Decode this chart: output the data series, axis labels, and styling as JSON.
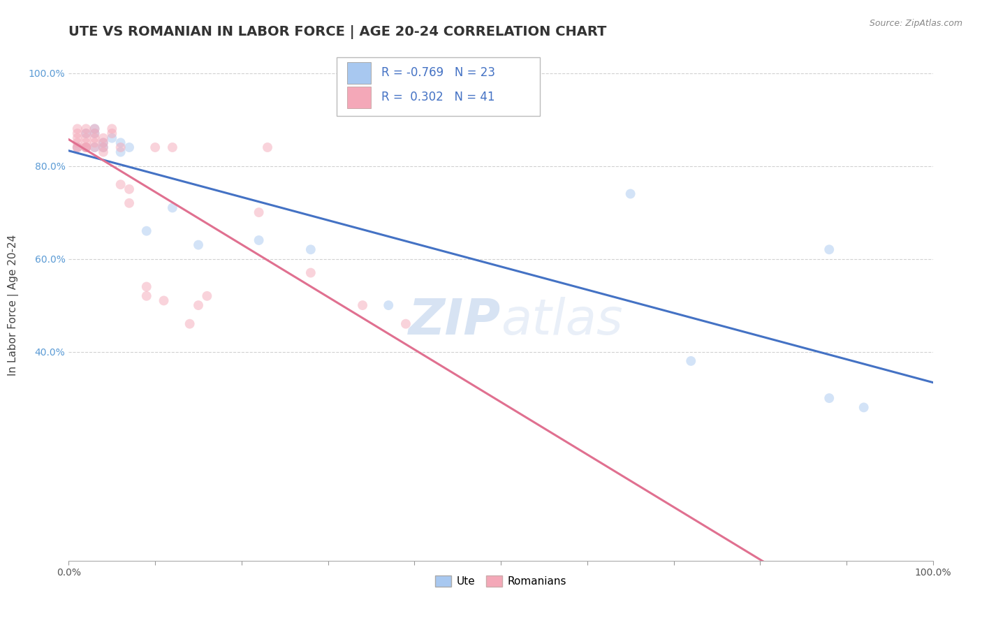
{
  "title": "UTE VS ROMANIAN IN LABOR FORCE | AGE 20-24 CORRELATION CHART",
  "source_text": "Source: ZipAtlas.com",
  "xlabel": "",
  "ylabel": "In Labor Force | Age 20-24",
  "watermark": "ZIPatlas",
  "ute_R": -0.769,
  "ute_N": 23,
  "romanian_R": 0.302,
  "romanian_N": 41,
  "ute_color": "#A8C8F0",
  "romanian_color": "#F4A8B8",
  "ute_line_color": "#4472C4",
  "romanian_line_color": "#E07090",
  "background_color": "#FFFFFF",
  "grid_color": "#CCCCCC",
  "xlim": [
    0.0,
    1.0
  ],
  "ylim": [
    -0.05,
    1.05
  ],
  "x_ticks": [
    0.0,
    0.1,
    0.2,
    0.3,
    0.4,
    0.5,
    0.6,
    0.7,
    0.8,
    0.9,
    1.0
  ],
  "x_tick_labels_show": [
    0.0,
    1.0
  ],
  "y_ticks": [
    0.4,
    0.6,
    0.8,
    1.0
  ],
  "y_tick_labels": [
    "40.0%",
    "60.0%",
    "80.0%",
    "100.0%"
  ],
  "ute_x": [
    0.01,
    0.02,
    0.02,
    0.03,
    0.03,
    0.03,
    0.04,
    0.04,
    0.05,
    0.06,
    0.06,
    0.07,
    0.09,
    0.12,
    0.15,
    0.22,
    0.28,
    0.37,
    0.65,
    0.72,
    0.88,
    0.88,
    0.92
  ],
  "ute_y": [
    0.84,
    0.84,
    0.87,
    0.84,
    0.87,
    0.88,
    0.84,
    0.85,
    0.86,
    0.83,
    0.85,
    0.84,
    0.66,
    0.71,
    0.63,
    0.64,
    0.62,
    0.5,
    0.74,
    0.38,
    0.62,
    0.3,
    0.28
  ],
  "romanian_x": [
    0.01,
    0.01,
    0.01,
    0.01,
    0.01,
    0.01,
    0.02,
    0.02,
    0.02,
    0.02,
    0.02,
    0.02,
    0.02,
    0.03,
    0.03,
    0.03,
    0.03,
    0.03,
    0.04,
    0.04,
    0.04,
    0.04,
    0.05,
    0.05,
    0.06,
    0.06,
    0.07,
    0.07,
    0.09,
    0.09,
    0.1,
    0.11,
    0.12,
    0.14,
    0.15,
    0.16,
    0.22,
    0.23,
    0.28,
    0.34,
    0.39
  ],
  "romanian_y": [
    0.84,
    0.85,
    0.86,
    0.87,
    0.88,
    0.84,
    0.84,
    0.85,
    0.86,
    0.87,
    0.88,
    0.84,
    0.84,
    0.84,
    0.85,
    0.86,
    0.87,
    0.88,
    0.83,
    0.84,
    0.85,
    0.86,
    0.87,
    0.88,
    0.76,
    0.84,
    0.72,
    0.75,
    0.52,
    0.54,
    0.84,
    0.51,
    0.84,
    0.46,
    0.5,
    0.52,
    0.7,
    0.84,
    0.57,
    0.5,
    0.46
  ],
  "title_fontsize": 14,
  "axis_label_fontsize": 11,
  "tick_fontsize": 10,
  "legend_fontsize": 12,
  "source_fontsize": 9,
  "marker_size": 100,
  "marker_alpha": 0.5,
  "line_width": 2.2
}
